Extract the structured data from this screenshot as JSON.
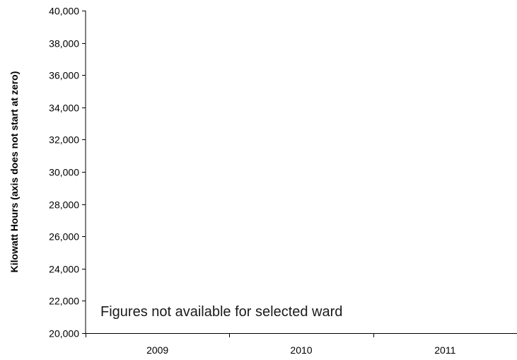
{
  "chart_data": {
    "type": "bar",
    "categories": [
      "2009",
      "2010",
      "2011"
    ],
    "series": [],
    "title": "",
    "xlabel": "",
    "ylabel": "Kilowatt Hours (axis does not start at zero)",
    "ylim": [
      20000,
      40000
    ],
    "yticks": [
      20000,
      22000,
      24000,
      26000,
      28000,
      30000,
      32000,
      34000,
      36000,
      38000,
      40000
    ],
    "ytick_labels": [
      "20,000",
      "22,000",
      "24,000",
      "26,000",
      "28,000",
      "30,000",
      "32,000",
      "34,000",
      "36,000",
      "38,000",
      "40,000"
    ],
    "grid": false,
    "annotations": [
      "Figures not available for selected ward"
    ]
  },
  "colors": {
    "axis": "#000000",
    "text": "#000000",
    "background": "#ffffff"
  }
}
